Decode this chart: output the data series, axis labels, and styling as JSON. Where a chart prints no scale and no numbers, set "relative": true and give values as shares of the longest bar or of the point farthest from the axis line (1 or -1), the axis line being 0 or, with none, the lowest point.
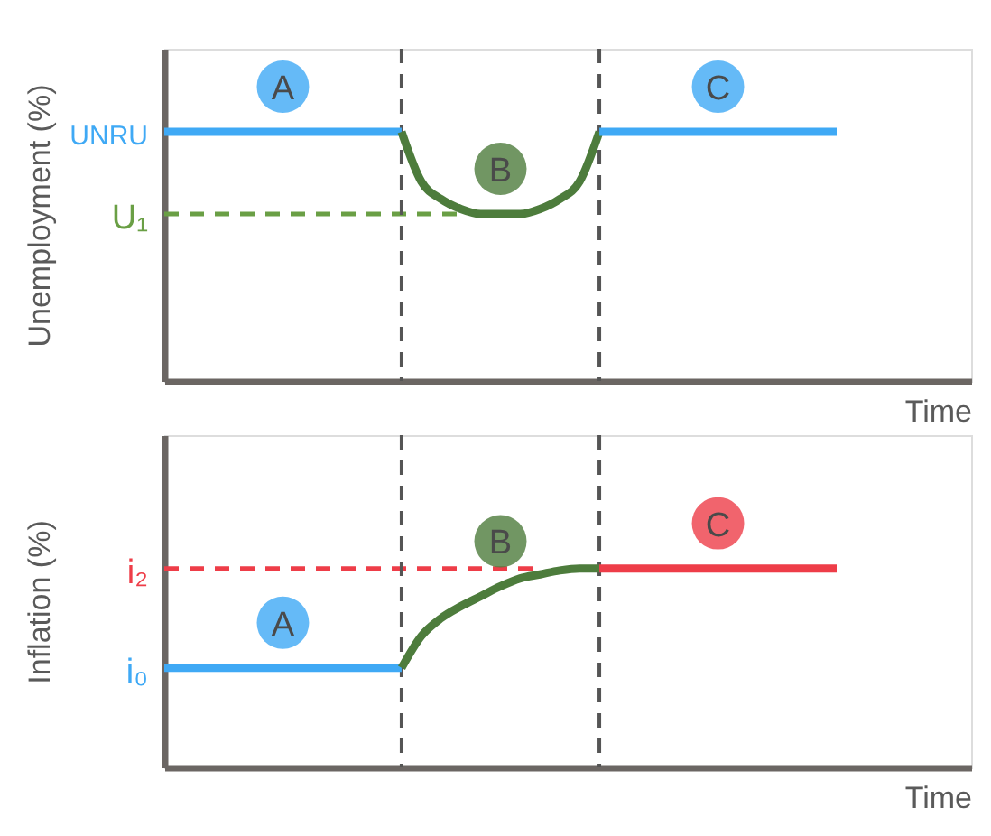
{
  "chart_data": [
    {
      "type": "line",
      "relative": true,
      "xlabel": "Time",
      "ylabel": "Unemployment (%)",
      "tick_labels": false,
      "grid": false,
      "marker": "none",
      "categories": [
        null,
        null,
        null,
        null,
        null,
        null,
        null,
        null,
        null,
        null,
        null,
        null,
        null,
        null,
        null,
        null,
        null,
        null,
        null,
        null,
        null,
        null,
        null,
        null,
        null,
        null,
        null,
        null,
        null,
        null,
        null,
        null,
        null,
        null,
        null
      ],
      "series": [
        {
          "color": "#6a9f45",
          "line_style": "dashed",
          "values": [
            0.67,
            0.67,
            0.67,
            0.67,
            0.67,
            0.67,
            0.67,
            0.67,
            0.67,
            0.67,
            0.67,
            0.67,
            0.67,
            0.67,
            0.67,
            0.67,
            null,
            null,
            null,
            null,
            null,
            null,
            null,
            null,
            null,
            null,
            null,
            null,
            null,
            null,
            null,
            null,
            null,
            null,
            null
          ]
        },
        {
          "name": "A",
          "color": "#3fa9f5",
          "line_style": "solid",
          "values": [
            1,
            1,
            1,
            1,
            1,
            1,
            1,
            1,
            1,
            1,
            1,
            1,
            1,
            null,
            null,
            null,
            null,
            null,
            null,
            null,
            null,
            null,
            null,
            null,
            null,
            null,
            null,
            null,
            null,
            null,
            null,
            null,
            null,
            null,
            null
          ]
        },
        {
          "name": "B",
          "color": "#4d7c3c",
          "line_style": "solid",
          "values": [
            null,
            null,
            null,
            null,
            null,
            null,
            null,
            null,
            null,
            null,
            null,
            null,
            1,
            0.8,
            0.73,
            0.69,
            0.67,
            0.67,
            0.67,
            0.69,
            0.73,
            0.8,
            1,
            null,
            null,
            null,
            null,
            null,
            null,
            null,
            null,
            null,
            null,
            null,
            null
          ]
        },
        {
          "name": "C",
          "color": "#3fa9f5",
          "line_style": "solid",
          "values": [
            null,
            null,
            null,
            null,
            null,
            null,
            null,
            null,
            null,
            null,
            null,
            null,
            null,
            null,
            null,
            null,
            null,
            null,
            null,
            null,
            null,
            null,
            1,
            1,
            1,
            1,
            1,
            1,
            1,
            1,
            1,
            1,
            1,
            1,
            1
          ]
        }
      ],
      "annotations": [
        "UNRU",
        "U₁"
      ]
    },
    {
      "type": "line",
      "relative": true,
      "xlabel": "Time",
      "ylabel": "Inflation (%)",
      "tick_labels": false,
      "grid": false,
      "marker": "none",
      "categories": [
        null,
        null,
        null,
        null,
        null,
        null,
        null,
        null,
        null,
        null,
        null,
        null,
        null,
        null,
        null,
        null,
        null,
        null,
        null,
        null,
        null,
        null,
        null,
        null,
        null,
        null,
        null,
        null,
        null,
        null,
        null,
        null,
        null,
        null,
        null
      ],
      "series": [
        {
          "color": "#ee3d48",
          "line_style": "dashed",
          "values": [
            1,
            1,
            1,
            1,
            1,
            1,
            1,
            1,
            1,
            1,
            1,
            1,
            1,
            1,
            1,
            1,
            1,
            1,
            1,
            1,
            null,
            null,
            null,
            null,
            null,
            null,
            null,
            null,
            null,
            null,
            null,
            null,
            null,
            null,
            null
          ]
        },
        {
          "name": "A",
          "color": "#3fa9f5",
          "line_style": "solid",
          "values": [
            0.5,
            0.5,
            0.5,
            0.5,
            0.5,
            0.5,
            0.5,
            0.5,
            0.5,
            0.5,
            0.5,
            0.5,
            0.5,
            null,
            null,
            null,
            null,
            null,
            null,
            null,
            null,
            null,
            null,
            null,
            null,
            null,
            null,
            null,
            null,
            null,
            null,
            null,
            null,
            null,
            null
          ]
        },
        {
          "name": "B",
          "color": "#4d7c3c",
          "line_style": "solid",
          "values": [
            null,
            null,
            null,
            null,
            null,
            null,
            null,
            null,
            null,
            null,
            null,
            null,
            0.5,
            0.66,
            0.75,
            0.81,
            0.86,
            0.91,
            0.95,
            0.97,
            0.99,
            1,
            1,
            null,
            null,
            null,
            null,
            null,
            null,
            null,
            null,
            null,
            null,
            null,
            null
          ]
        },
        {
          "name": "C",
          "color": "#ee3d48",
          "line_style": "solid",
          "values": [
            null,
            null,
            null,
            null,
            null,
            null,
            null,
            null,
            null,
            null,
            null,
            null,
            null,
            null,
            null,
            null,
            null,
            null,
            null,
            null,
            null,
            null,
            1,
            1,
            1,
            1,
            1,
            1,
            1,
            1,
            1,
            1,
            1,
            1,
            1
          ]
        }
      ],
      "annotations": [
        "i₂",
        "i₀"
      ]
    }
  ]
}
